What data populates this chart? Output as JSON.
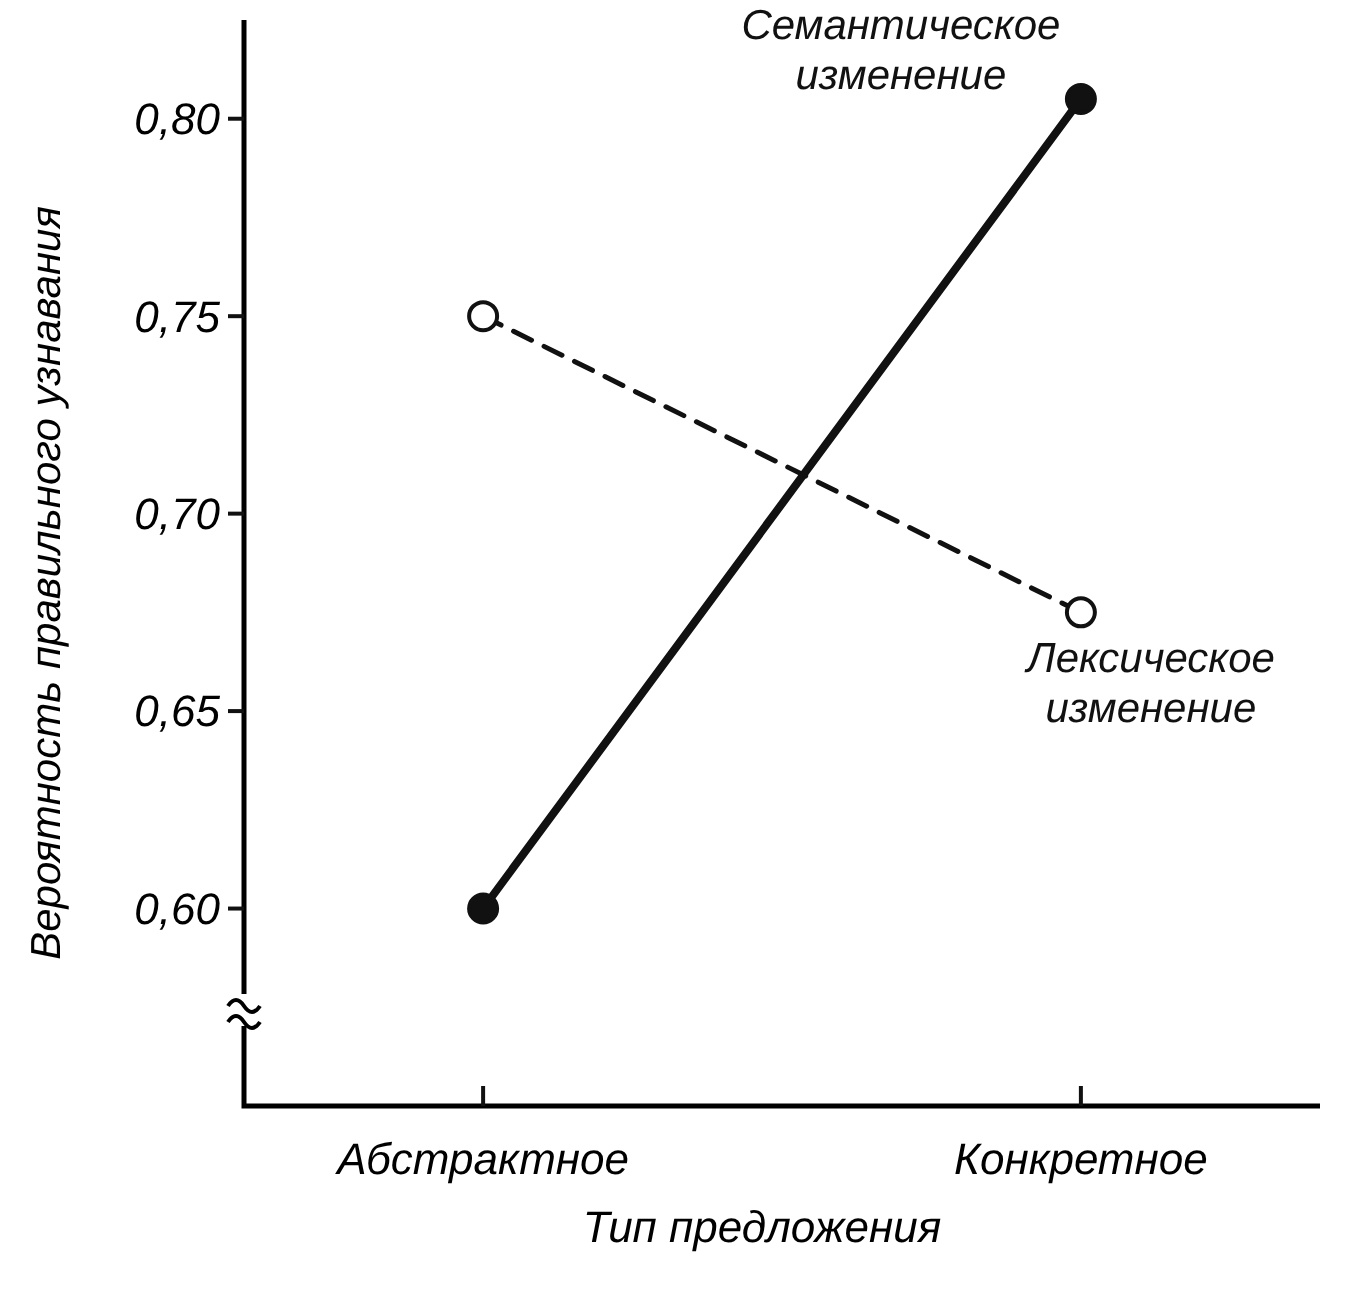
{
  "chart_data": {
    "type": "line",
    "xlabel": "Тип предложения",
    "ylabel": "Вероятность правильного узнавания",
    "categories": [
      "Абстрактное",
      "Конкретное"
    ],
    "series": [
      {
        "name": "Семантическое изменение",
        "color": "#111111",
        "values": [
          0.6,
          0.805
        ],
        "line_style": "solid"
      },
      {
        "name": "Лексическое изменение",
        "color": "#111111",
        "values": [
          0.75,
          0.675
        ],
        "line_style": "dashed"
      }
    ],
    "ylim": [
      0.55,
      0.825
    ],
    "yticks": [
      {
        "value": 0.6,
        "label": "0,60"
      },
      {
        "value": 0.65,
        "label": "0,65"
      },
      {
        "value": 0.7,
        "label": "0,70"
      },
      {
        "value": 0.75,
        "label": "0,75"
      },
      {
        "value": 0.8,
        "label": "0,80"
      }
    ],
    "marker": "circle",
    "grid": false
  }
}
